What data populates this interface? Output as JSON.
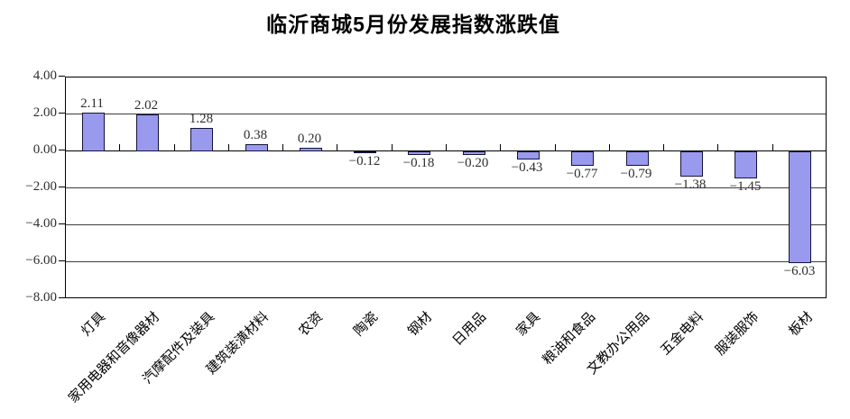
{
  "title": "临沂商城5月份发展指数涨跌值",
  "chart_data": {
    "type": "bar",
    "title": "临沂商城5月份发展指数涨跌值",
    "categories": [
      "灯具",
      "家用电器和音像器材",
      "汽摩配件及装具",
      "建筑装潢材料",
      "农资",
      "陶瓷",
      "钢材",
      "日用品",
      "家具",
      "粮油和食品",
      "文教办公用品",
      "五金电料",
      "服装服饰",
      "板材"
    ],
    "values": [
      2.11,
      2.02,
      1.28,
      0.38,
      0.2,
      -0.12,
      -0.18,
      -0.2,
      -0.43,
      -0.77,
      -0.79,
      -1.38,
      -1.45,
      -6.03
    ],
    "value_labels": [
      "2.11",
      "2.02",
      "1.28",
      "0.38",
      "0.20",
      "−0.12",
      "−0.18",
      "−0.20",
      "−0.43",
      "−0.77",
      "−0.79",
      "−1.38",
      "−1.45",
      "−6.03"
    ],
    "xlabel": "",
    "ylabel": "",
    "ylim": [
      -8,
      4
    ],
    "y_tick_labels": [
      "4.00",
      "2.00",
      "0.00",
      "−2.00",
      "−4.00",
      "−6.00",
      "−8.00"
    ],
    "grid": true,
    "legend_position": "none",
    "colors": {
      "bar_fill": "#9999EE",
      "bar_border": "#14143C",
      "gridline": "#3C3C3C",
      "axis": "#000000",
      "value_text": "#2E2E2E"
    }
  }
}
